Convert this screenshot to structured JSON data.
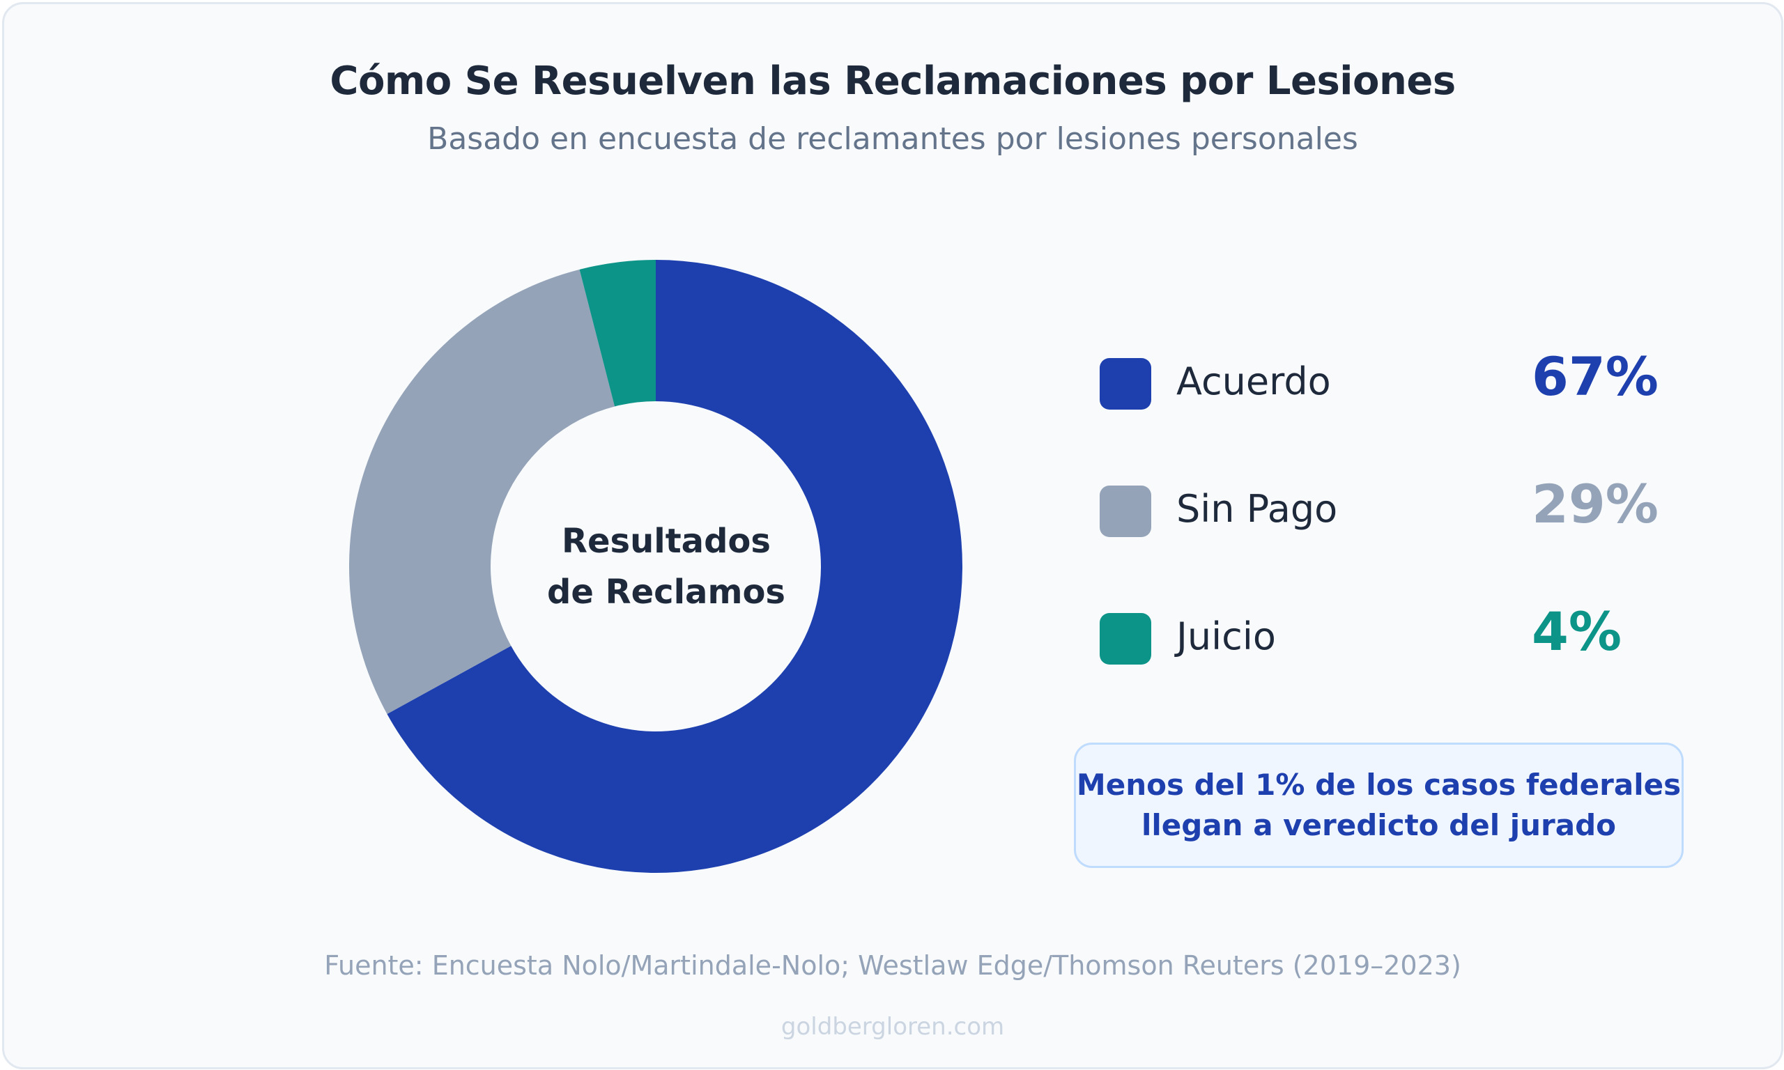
{
  "title": "Cómo Se Resuelven las Reclamaciones por Lesiones",
  "subtitle": "Basado en encuesta de reclamantes por lesiones personales",
  "center_label": {
    "line1": "Resultados",
    "line2": "de Reclamos"
  },
  "chart_data": {
    "type": "pie",
    "title": "Cómo Se Resuelven las Reclamaciones por Lesiones",
    "subtitle": "Basado en encuesta de reclamantes por lesiones personales",
    "donut": true,
    "legend_position": "right",
    "categories": [
      "Acuerdo",
      "Sin Pago",
      "Juicio"
    ],
    "values": [
      67,
      29,
      4
    ],
    "value_labels": [
      "67%",
      "29%",
      "4%"
    ],
    "colors": [
      "#1e40af",
      "#94a3b8",
      "#0d9488"
    ]
  },
  "note": {
    "line1": "Menos del 1% de los casos federales",
    "line2": "llegan a veredicto del jurado"
  },
  "source": "Fuente: Encuesta Nolo/Martindale-Nolo; Westlaw Edge/Thomson Reuters (2019–2023)",
  "website": "goldbergloren.com"
}
